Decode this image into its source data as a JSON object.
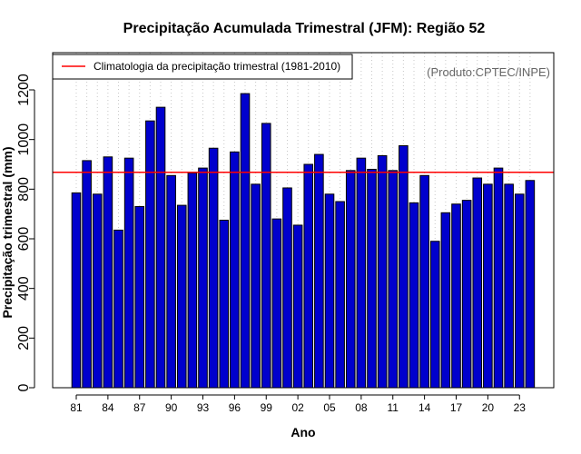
{
  "chart_data": {
    "type": "bar",
    "title": "Precipitação Acumulada Trimestral (JFM): Região 52",
    "xlabel": "Ano",
    "ylabel": "Precipitação trimestral (mm)",
    "credit": "(Produto:CPTEC/INPE)",
    "ylim": [
      0,
      1350
    ],
    "yticks": [
      0,
      200,
      400,
      600,
      800,
      1000,
      1200
    ],
    "ytick_labels": [
      "0",
      "200",
      "400",
      "600",
      "800",
      "1000",
      "1200"
    ],
    "years": [
      1981,
      1982,
      1983,
      1984,
      1985,
      1986,
      1987,
      1988,
      1989,
      1990,
      1991,
      1992,
      1993,
      1994,
      1995,
      1996,
      1997,
      1998,
      1999,
      2000,
      2001,
      2002,
      2003,
      2004,
      2005,
      2006,
      2007,
      2008,
      2009,
      2010,
      2011,
      2012,
      2013,
      2014,
      2015,
      2016,
      2017,
      2018,
      2019,
      2020,
      2021,
      2022,
      2023,
      2024
    ],
    "values": [
      785,
      915,
      780,
      930,
      635,
      925,
      730,
      1075,
      1130,
      855,
      735,
      865,
      885,
      965,
      675,
      950,
      1185,
      820,
      1065,
      680,
      805,
      655,
      900,
      940,
      780,
      750,
      875,
      925,
      880,
      935,
      875,
      975,
      745,
      855,
      590,
      705,
      740,
      755,
      845,
      820,
      885,
      820,
      780,
      835
    ],
    "xtick_labels": [
      "81",
      "84",
      "87",
      "90",
      "93",
      "96",
      "99",
      "02",
      "05",
      "08",
      "11",
      "14",
      "17",
      "20",
      "23"
    ],
    "xtick_years": [
      1981,
      1984,
      1987,
      1990,
      1993,
      1996,
      1999,
      2002,
      2005,
      2008,
      2011,
      2014,
      2017,
      2020,
      2023
    ],
    "climatology": {
      "label": "Climatologia da precipitação trimestral (1981-2010)",
      "value": 868,
      "color": "#ff0000"
    },
    "bar_color": "#0000cd",
    "bar_edge_color": "#000000",
    "grid": "vertical dotted"
  }
}
